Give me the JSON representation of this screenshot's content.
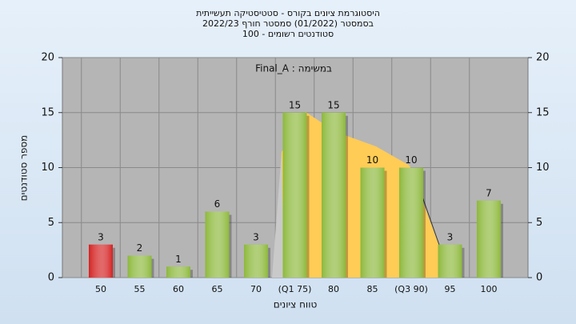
{
  "chart_data": {
    "type": "bar",
    "title": [
      "היסטוגרמת ציונים בקורס - סטטיסטיקה תעשייתית",
      "בסמסטר  (01/2022)  סמסטר חורף 2022/23",
      "סטודנטים רשומים - 100"
    ],
    "annotation": "Final_A : במשימה",
    "x_label": "טווח ציונים",
    "y_label": "מספר סטודנטים",
    "categories": [
      "50",
      "55",
      "60",
      "65",
      "70",
      "(Q1 75)",
      "80",
      "85",
      "(Q3 90)",
      "95",
      "100"
    ],
    "values": [
      3,
      2,
      1,
      6,
      3,
      15,
      15,
      10,
      10,
      3,
      7
    ],
    "colors": [
      "#d42020",
      "#8cb83a",
      "#8cb83a",
      "#8cb83a",
      "#8cb83a",
      "#8cb83a",
      "#8cb83a",
      "#8cb83a",
      "#8cb83a",
      "#8cb83a",
      "#8cb83a"
    ],
    "ylim": [
      0,
      20
    ],
    "yticks": [
      0,
      5,
      10,
      15,
      20
    ],
    "y2lim": [
      0,
      20
    ],
    "y2ticks": [
      0,
      5,
      10,
      15,
      20
    ],
    "grid": true
  }
}
